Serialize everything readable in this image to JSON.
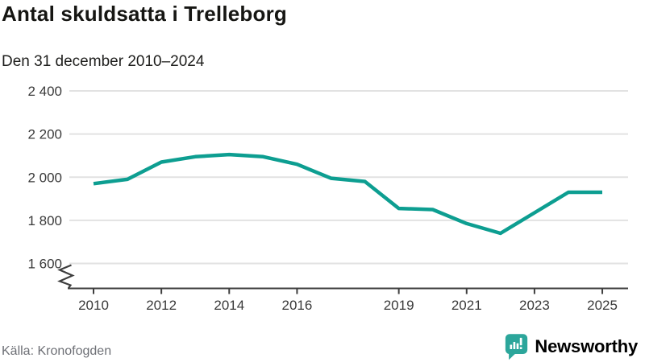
{
  "title": "Antal skuldsatta i Trelleborg",
  "subtitle": "Den 31 december 2010–2024",
  "source": "Källa: Kronofogden",
  "logo": {
    "name": "Newsworthy",
    "icon": "speech-bubble-bar-chart",
    "color": "#2ca69b"
  },
  "colors": {
    "line": "#0d9e91",
    "grid": "#e2e2e2",
    "axis": "#3e3e3e",
    "tick_label": "#3a3a3a",
    "title": "#161613",
    "source": "#6e7076"
  },
  "chart_data": {
    "type": "line",
    "title": "Antal skuldsatta i Trelleborg",
    "subtitle": "Den 31 december 2010–2024",
    "series_name": "Antal skuldsatta",
    "x": [
      2010,
      2011,
      2012,
      2013,
      2014,
      2015,
      2016,
      2017,
      2018,
      2019,
      2020,
      2021,
      2022,
      2023,
      2024,
      2025
    ],
    "values": [
      1970,
      1990,
      2070,
      2095,
      2105,
      2095,
      2060,
      1995,
      1980,
      1855,
      1850,
      1785,
      1740,
      1835,
      1930,
      1930
    ],
    "xticks": [
      2010,
      2012,
      2014,
      2016,
      2019,
      2021,
      2023,
      2025
    ],
    "yticks": [
      "2 400",
      "2 200",
      "2 000",
      "1 800",
      "1 600"
    ],
    "ytick_values": [
      2400,
      2200,
      2000,
      1800,
      1600
    ],
    "ylim": [
      1600,
      2400
    ],
    "xlabel": "",
    "ylabel": "",
    "grid": "horizontal",
    "axis_break_bottom_left": true,
    "legend": "none"
  }
}
